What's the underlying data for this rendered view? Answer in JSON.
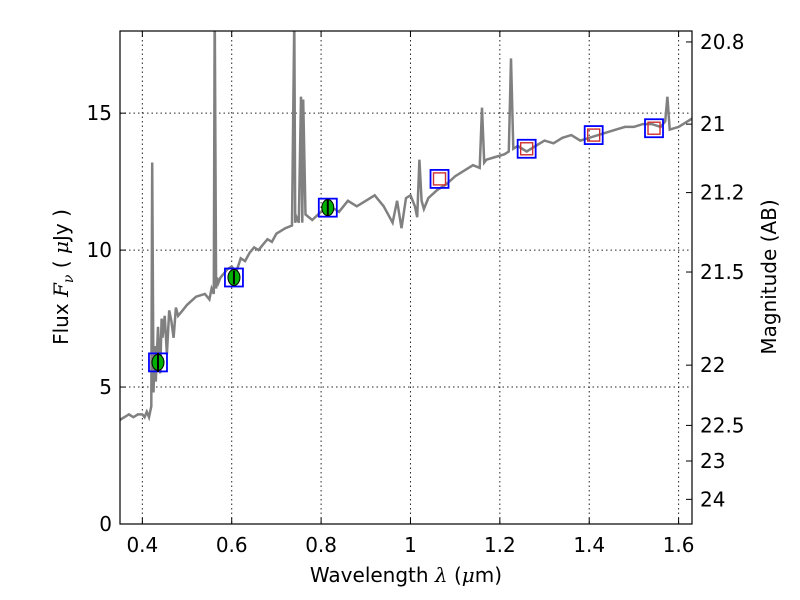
{
  "chart_data": {
    "type": "line",
    "title": "",
    "xlabel_prefix": "Wavelength  ",
    "xlabel_symbol": "λ",
    "xlabel_unit_open": " (",
    "xlabel_unit_mu": "μ",
    "xlabel_unit_rest": "m)",
    "ylabel_prefix": "Flux  ",
    "ylabel_symbol": "F",
    "ylabel_subscript": "ν",
    "ylabel_unit_open": "  ( ",
    "ylabel_unit_mu": "μ",
    "ylabel_unit_rest": "Jy )",
    "y2label": "Magnitude (AB)",
    "xlim": [
      0.35,
      1.63
    ],
    "ylim": [
      0,
      18
    ],
    "grid": true,
    "xticks": [
      0.4,
      0.6,
      0.8,
      1.0,
      1.2,
      1.4,
      1.6
    ],
    "xtick_labels": [
      "0.4",
      "0.6",
      "0.8",
      "1",
      "1.2",
      "1.4",
      "1.6"
    ],
    "yticks": [
      0,
      5,
      10,
      15
    ],
    "ytick_labels": [
      "0",
      "5",
      "10",
      "15"
    ],
    "y2ticks": [
      {
        "flux": 17.6,
        "label": "20.8"
      },
      {
        "flux": 14.6,
        "label": "21"
      },
      {
        "flux": 12.1,
        "label": "21.2"
      },
      {
        "flux": 9.2,
        "label": "21.5"
      },
      {
        "flux": 5.8,
        "label": "22"
      },
      {
        "flux": 3.6,
        "label": "22.5"
      },
      {
        "flux": 2.3,
        "label": "23"
      },
      {
        "flux": 0.9,
        "label": "24"
      }
    ],
    "colors": {
      "spectrum": "#808080",
      "marker_box": "#0000ff",
      "detected_fill": "#00b000",
      "model_box": "#d03030"
    },
    "spectrum": {
      "name": "model spectrum",
      "x": [
        0.35,
        0.37,
        0.38,
        0.39,
        0.4,
        0.405,
        0.41,
        0.415,
        0.42,
        0.422,
        0.425,
        0.428,
        0.43,
        0.435,
        0.44,
        0.443,
        0.445,
        0.45,
        0.455,
        0.46,
        0.465,
        0.47,
        0.475,
        0.48,
        0.49,
        0.5,
        0.52,
        0.54,
        0.55,
        0.555,
        0.56,
        0.562,
        0.565,
        0.567,
        0.57,
        0.575,
        0.58,
        0.59,
        0.6,
        0.61,
        0.62,
        0.63,
        0.64,
        0.65,
        0.66,
        0.67,
        0.68,
        0.69,
        0.7,
        0.72,
        0.735,
        0.74,
        0.742,
        0.745,
        0.75,
        0.755,
        0.758,
        0.76,
        0.765,
        0.78,
        0.8,
        0.82,
        0.84,
        0.86,
        0.88,
        0.9,
        0.92,
        0.94,
        0.96,
        0.97,
        0.98,
        0.99,
        1.0,
        1.01,
        1.015,
        1.02,
        1.025,
        1.03,
        1.04,
        1.06,
        1.08,
        1.1,
        1.12,
        1.14,
        1.155,
        1.16,
        1.165,
        1.17,
        1.19,
        1.21,
        1.22,
        1.225,
        1.23,
        1.24,
        1.26,
        1.28,
        1.3,
        1.32,
        1.34,
        1.36,
        1.38,
        1.4,
        1.42,
        1.44,
        1.46,
        1.48,
        1.5,
        1.52,
        1.54,
        1.56,
        1.57,
        1.575,
        1.58,
        1.6,
        1.63
      ],
      "y": [
        3.8,
        4.0,
        3.9,
        4.0,
        4.0,
        3.9,
        4.1,
        3.9,
        4.3,
        13.2,
        4.8,
        6.5,
        5.2,
        7.2,
        5.5,
        7.5,
        6.8,
        7.6,
        6.2,
        7.8,
        7.4,
        6.8,
        7.9,
        7.6,
        7.8,
        8.0,
        8.3,
        8.4,
        8.2,
        8.6,
        8.4,
        19.0,
        8.6,
        9.0,
        8.8,
        9.0,
        9.1,
        9.3,
        9.4,
        9.2,
        9.7,
        9.6,
        9.9,
        10.1,
        10.0,
        10.2,
        10.4,
        10.3,
        10.6,
        10.8,
        10.9,
        18.5,
        11.0,
        11.2,
        11.0,
        15.6,
        11.0,
        15.5,
        11.3,
        11.1,
        11.4,
        11.6,
        11.4,
        11.8,
        11.6,
        11.8,
        12.0,
        11.6,
        11.0,
        11.8,
        10.8,
        11.9,
        12.0,
        11.6,
        11.2,
        13.3,
        11.8,
        11.5,
        11.9,
        12.2,
        12.4,
        12.7,
        12.9,
        13.1,
        13.0,
        15.2,
        13.2,
        13.3,
        13.4,
        13.5,
        13.6,
        17.0,
        13.7,
        13.8,
        13.6,
        13.8,
        14.0,
        13.9,
        14.1,
        14.2,
        14.0,
        14.1,
        14.2,
        14.3,
        14.4,
        14.5,
        14.5,
        14.6,
        14.6,
        14.5,
        14.7,
        15.6,
        14.4,
        14.5,
        14.8
      ]
    },
    "photometry": [
      {
        "x": 0.435,
        "y": 5.9,
        "err": 0.35,
        "detected": true
      },
      {
        "x": 0.605,
        "y": 9.0,
        "err": 0.25,
        "detected": true
      },
      {
        "x": 0.815,
        "y": 11.55,
        "err": 0.3,
        "detected": true
      },
      {
        "x": 1.065,
        "y": 12.6,
        "err": 0.0,
        "detected": false
      },
      {
        "x": 1.26,
        "y": 13.7,
        "err": 0.0,
        "detected": false
      },
      {
        "x": 1.41,
        "y": 14.2,
        "err": 0.0,
        "detected": false
      },
      {
        "x": 1.545,
        "y": 14.45,
        "err": 0.0,
        "detected": false
      }
    ]
  }
}
